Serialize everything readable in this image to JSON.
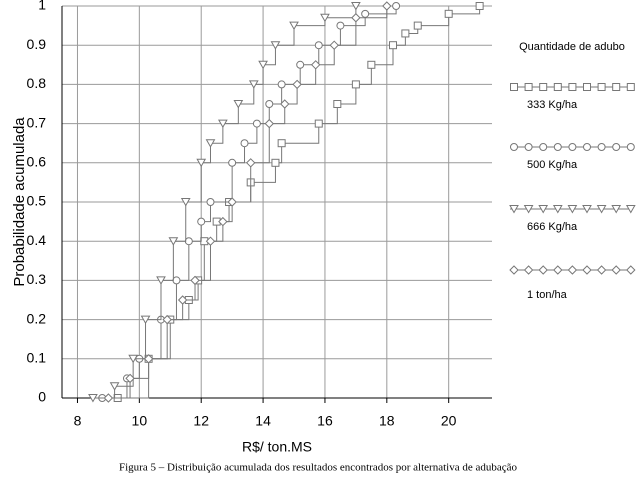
{
  "chart_data": {
    "type": "line",
    "step": true,
    "x_label": "R$/ ton.MS",
    "y_label": "Probabilidade acumulada",
    "caption": "Figura 5 – Distribuição acumulada dos resultados encontrados por alternativa de adubação",
    "legend_title": "Quantidade de adubo",
    "xlim": [
      7.5,
      21.4
    ],
    "xticks": [
      8,
      10,
      12,
      14,
      16,
      18,
      20
    ],
    "ylim": [
      0,
      1
    ],
    "yticks": [
      0,
      0.1,
      0.2,
      0.3,
      0.4,
      0.5,
      0.6,
      0.7,
      0.8,
      0.9,
      1
    ],
    "grid": true,
    "series": [
      {
        "name": "333 Kg/ha",
        "marker": "square",
        "color": "#777777",
        "x": [
          9.3,
          10.3,
          11.0,
          11.6,
          11.9,
          12.1,
          12.5,
          12.9,
          13.6,
          14.4,
          14.6,
          15.8,
          16.4,
          17.0,
          17.5,
          18.2,
          18.6,
          19.0,
          20.0,
          21.0
        ],
        "values": [
          0,
          0.1,
          0.2,
          0.25,
          0.3,
          0.4,
          0.45,
          0.5,
          0.55,
          0.6,
          0.65,
          0.7,
          0.75,
          0.8,
          0.85,
          0.9,
          0.93,
          0.95,
          0.98,
          1
        ]
      },
      {
        "name": "500 Kg/ha",
        "marker": "circle",
        "color": "#777777",
        "x": [
          8.8,
          9.6,
          10.0,
          10.7,
          11.2,
          11.6,
          12.0,
          12.3,
          13.0,
          13.4,
          13.8,
          14.2,
          14.6,
          15.2,
          15.8,
          16.5,
          17.3,
          18.3
        ],
        "values": [
          0,
          0.05,
          0.1,
          0.2,
          0.3,
          0.4,
          0.45,
          0.5,
          0.6,
          0.65,
          0.7,
          0.75,
          0.8,
          0.85,
          0.9,
          0.95,
          0.98,
          1
        ]
      },
      {
        "name": "666 Kg/ha",
        "marker": "tri",
        "color": "#777777",
        "x": [
          8.5,
          9.2,
          9.8,
          10.2,
          10.7,
          11.1,
          11.5,
          12.0,
          12.3,
          12.7,
          13.2,
          13.7,
          14.0,
          14.4,
          15.0,
          16.0,
          17.0
        ],
        "values": [
          0,
          0.03,
          0.1,
          0.2,
          0.3,
          0.4,
          0.5,
          0.6,
          0.65,
          0.7,
          0.75,
          0.8,
          0.85,
          0.9,
          0.95,
          0.97,
          1
        ]
      },
      {
        "name": "1 ton/ha",
        "marker": "diamond",
        "color": "#777777",
        "x": [
          9.0,
          9.7,
          10.3,
          10.9,
          11.4,
          11.8,
          12.3,
          12.7,
          13.0,
          13.6,
          14.2,
          14.7,
          15.1,
          15.7,
          16.3,
          17.0,
          18.0
        ],
        "values": [
          0,
          0.05,
          0.1,
          0.2,
          0.25,
          0.3,
          0.4,
          0.45,
          0.5,
          0.6,
          0.7,
          0.75,
          0.8,
          0.85,
          0.9,
          0.97,
          1
        ]
      }
    ]
  }
}
